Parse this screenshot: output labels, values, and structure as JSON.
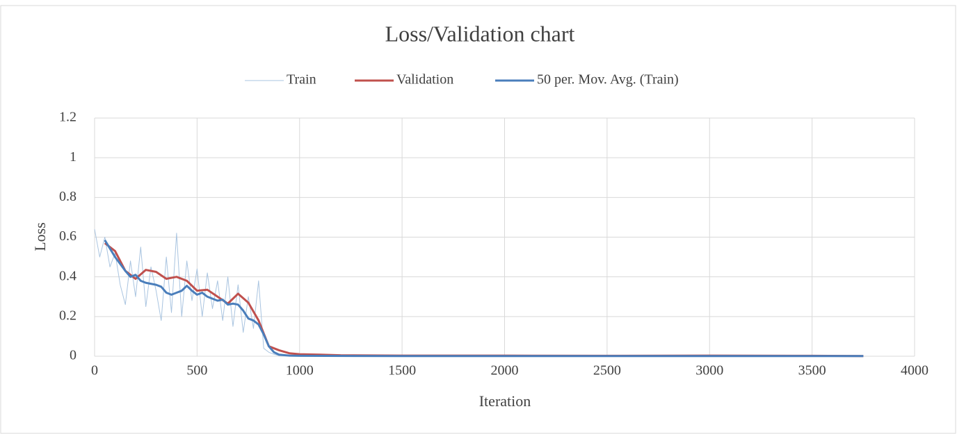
{
  "chart_data": {
    "type": "line",
    "title": "Loss/Validation chart",
    "x_label": "Iteration",
    "y_label": "Loss",
    "xlim": [
      0,
      4000
    ],
    "xticks": [
      0,
      500,
      1000,
      1500,
      2000,
      2500,
      3000,
      3500,
      4000
    ],
    "ylim": [
      0,
      1.2
    ],
    "yticks": [
      0,
      0.2,
      0.4,
      0.6,
      0.8,
      1,
      1.2
    ],
    "grid": true,
    "legend": "top",
    "series": [
      {
        "name": "Train",
        "color": "#a9c4e0",
        "width": 1,
        "x": [
          0,
          25,
          50,
          75,
          100,
          125,
          150,
          175,
          200,
          225,
          250,
          275,
          300,
          325,
          350,
          375,
          400,
          425,
          450,
          475,
          500,
          525,
          550,
          575,
          600,
          625,
          650,
          675,
          700,
          725,
          750,
          775,
          800,
          825,
          850,
          875,
          900,
          950,
          1000,
          1500,
          2000,
          2500,
          3000,
          3500,
          3750
        ],
        "values": [
          0.64,
          0.5,
          0.6,
          0.45,
          0.52,
          0.36,
          0.26,
          0.48,
          0.3,
          0.55,
          0.25,
          0.45,
          0.33,
          0.18,
          0.5,
          0.22,
          0.62,
          0.2,
          0.48,
          0.28,
          0.44,
          0.2,
          0.42,
          0.24,
          0.38,
          0.18,
          0.4,
          0.15,
          0.36,
          0.12,
          0.3,
          0.14,
          0.38,
          0.04,
          0.02,
          0.01,
          0.003,
          0.002,
          0.001,
          0.001,
          0.001,
          0.001,
          0.001,
          0.001,
          0.001
        ]
      },
      {
        "name": "Validation",
        "color": "#c0504d",
        "width": 3,
        "x": [
          50,
          100,
          150,
          200,
          250,
          300,
          350,
          400,
          450,
          500,
          550,
          600,
          650,
          700,
          750,
          800,
          850,
          900,
          950,
          1000,
          1100,
          1200,
          1500,
          2000,
          2500,
          3000,
          3500,
          3750
        ],
        "values": [
          0.57,
          0.53,
          0.43,
          0.39,
          0.435,
          0.425,
          0.39,
          0.4,
          0.38,
          0.33,
          0.335,
          0.3,
          0.265,
          0.315,
          0.27,
          0.18,
          0.05,
          0.03,
          0.015,
          0.01,
          0.008,
          0.005,
          0.003,
          0.003,
          0.002,
          0.003,
          0.002,
          0.001
        ]
      },
      {
        "name": "50 per. Mov. Avg. (Train)",
        "color": "#4a7ebb",
        "width": 3,
        "x": [
          50,
          100,
          150,
          175,
          200,
          225,
          250,
          300,
          325,
          350,
          375,
          400,
          425,
          450,
          475,
          500,
          525,
          550,
          575,
          600,
          625,
          650,
          675,
          700,
          725,
          750,
          775,
          800,
          825,
          850,
          875,
          900,
          950,
          1000,
          1500,
          2000,
          2500,
          3000,
          3500,
          3750
        ],
        "values": [
          0.585,
          0.5,
          0.43,
          0.4,
          0.41,
          0.38,
          0.37,
          0.36,
          0.35,
          0.32,
          0.31,
          0.32,
          0.33,
          0.355,
          0.33,
          0.31,
          0.32,
          0.3,
          0.29,
          0.28,
          0.285,
          0.26,
          0.265,
          0.26,
          0.23,
          0.19,
          0.18,
          0.16,
          0.11,
          0.05,
          0.02,
          0.008,
          0.003,
          0.002,
          0.001,
          0.001,
          0.001,
          0.001,
          0.001,
          0.001
        ]
      }
    ]
  }
}
